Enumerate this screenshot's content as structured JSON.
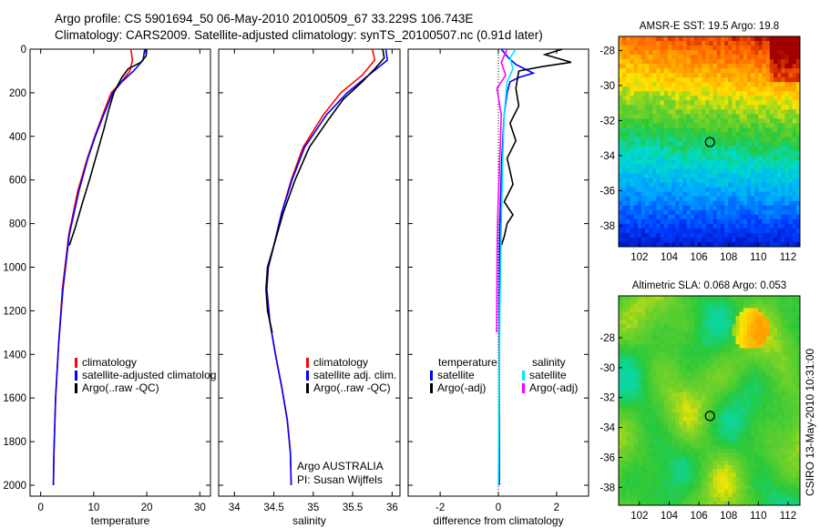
{
  "header": {
    "line1": "Argo profile: CS 5901694_50 06-May-2010 20100509_67 33.229S 106.743E",
    "line2": "Climatology: CARS2009. Satellite-adjusted climatology: synTS_20100507.nc (0.91d later)"
  },
  "side_label": "CSIRO 13-May-2010 10:31:00",
  "colors": {
    "climatology": "#ff0000",
    "satellite": "#0000ff",
    "argo": "#000000",
    "sat_salinity": "#00e5ff",
    "argo_salinity": "#ff00ff"
  },
  "chart_data": [
    {
      "name": "temperature",
      "type": "line",
      "xlabel": "temperature",
      "xlim": [
        -2,
        32
      ],
      "ylim": [
        0,
        2050
      ],
      "xticks": [
        "0",
        "10",
        "20",
        "30"
      ],
      "xtick_values": [
        0,
        10,
        20,
        30
      ],
      "yticks": [
        "0",
        "200",
        "400",
        "600",
        "800",
        "1000",
        "1200",
        "1400",
        "1600",
        "1800",
        "2000"
      ],
      "ytick_values": [
        0,
        200,
        400,
        600,
        800,
        1000,
        1200,
        1400,
        1600,
        1800,
        2000
      ],
      "legend": [
        "climatology",
        "satellite-adjusted climatolog",
        "Argo(..raw -QC)"
      ],
      "series": [
        {
          "name": "climatology",
          "color": "#ff0000",
          "x": [
            17,
            17.3,
            16.8,
            15.2,
            13.3,
            11.7,
            10.2,
            8.8,
            7.0,
            5.3,
            4.1,
            3.4,
            2.8,
            2.5,
            2.4
          ],
          "y": [
            0,
            50,
            100,
            150,
            200,
            300,
            400,
            500,
            650,
            850,
            1100,
            1350,
            1600,
            1850,
            2000
          ]
        },
        {
          "name": "satellite-adjusted climatology",
          "color": "#0000ff",
          "x": [
            19.6,
            19.3,
            17.5,
            15.3,
            13.6,
            11.9,
            10.3,
            8.9,
            7.2,
            5.4,
            4.2,
            3.4,
            2.8,
            2.5,
            2.4
          ],
          "y": [
            0,
            50,
            100,
            150,
            200,
            300,
            400,
            500,
            650,
            850,
            1100,
            1350,
            1600,
            1850,
            2000
          ]
        },
        {
          "name": "Argo",
          "color": "#000000",
          "x": [
            19.8,
            19.9,
            18.9,
            16.5,
            15.3,
            13.8,
            12.8,
            12.0,
            10.7,
            9.2,
            7.8,
            6.5,
            5.4
          ],
          "y": [
            0,
            30,
            60,
            90,
            130,
            200,
            280,
            360,
            470,
            600,
            710,
            820,
            900
          ]
        }
      ]
    },
    {
      "name": "salinity",
      "type": "line",
      "xlabel": "salinity",
      "xlim": [
        33.8,
        36.1
      ],
      "ylim": [
        0,
        2050
      ],
      "xticks": [
        "34",
        "34.5",
        "35",
        "35.5",
        "36"
      ],
      "xtick_values": [
        34,
        34.5,
        35,
        35.5,
        36
      ],
      "legend": [
        "climatology",
        "satellite adj. clim.",
        "Argo(..raw -QC)"
      ],
      "annotation": [
        "Argo AUSTRALIA",
        "PI: Susan Wijffels"
      ],
      "series": [
        {
          "name": "climatology",
          "color": "#ff0000",
          "x": [
            35.75,
            35.78,
            35.62,
            35.35,
            35.13,
            34.87,
            34.72,
            34.6,
            34.5,
            34.43,
            34.41,
            34.45,
            34.52,
            34.6,
            34.67,
            34.71,
            34.72
          ],
          "y": [
            0,
            50,
            120,
            200,
            300,
            450,
            600,
            750,
            900,
            1000,
            1100,
            1250,
            1400,
            1550,
            1700,
            1850,
            2000
          ]
        },
        {
          "name": "satellite adj. clim.",
          "color": "#0000ff",
          "x": [
            35.92,
            35.94,
            35.7,
            35.43,
            35.17,
            34.89,
            34.73,
            34.6,
            34.5,
            34.43,
            34.41,
            34.45,
            34.52,
            34.6,
            34.67,
            34.71,
            34.72
          ],
          "y": [
            0,
            50,
            120,
            200,
            300,
            450,
            600,
            750,
            900,
            1000,
            1100,
            1250,
            1400,
            1550,
            1700,
            1850,
            2000
          ]
        },
        {
          "name": "Argo",
          "color": "#000000",
          "x": [
            35.88,
            35.9,
            35.78,
            35.62,
            35.38,
            35.2,
            34.95,
            34.77,
            34.62,
            34.5,
            34.42,
            34.4,
            34.42,
            34.48
          ],
          "y": [
            0,
            40,
            90,
            150,
            230,
            320,
            450,
            600,
            750,
            900,
            1000,
            1100,
            1200,
            1300
          ]
        }
      ]
    },
    {
      "name": "difference",
      "type": "line",
      "xlabel": "difference from climatology",
      "xlim": [
        -3.1,
        3.1
      ],
      "ylim": [
        0,
        2050
      ],
      "xticks": [
        "-2",
        "0",
        "2"
      ],
      "xtick_values": [
        -2,
        0,
        2
      ],
      "legend_headers": [
        "temperature",
        "salinity"
      ],
      "legend": [
        "satellite",
        "Argo(-adj)",
        "satellite",
        "Argo(-adj)"
      ],
      "series": [
        {
          "name": "temperature satellite",
          "color": "#0000ff",
          "x": [
            0.1,
            0.35,
            0.6,
            0.9,
            1.2,
            0.7,
            0.4,
            0.3,
            0.2,
            0.12,
            0.05,
            0.03,
            0.03
          ],
          "y": [
            0,
            40,
            70,
            90,
            110,
            130,
            150,
            200,
            300,
            500,
            800,
            1200,
            2000
          ]
        },
        {
          "name": "temperature Argo(-adj)",
          "color": "#000000",
          "x": [
            2.2,
            1.6,
            2.5,
            1.5,
            0.7,
            0.6,
            0.7,
            0.4,
            0.6,
            0.3,
            0.5,
            0.2,
            0.5,
            0.3,
            0.2,
            0.1
          ],
          "y": [
            0,
            25,
            60,
            80,
            100,
            180,
            260,
            340,
            420,
            500,
            620,
            700,
            760,
            800,
            860,
            900
          ]
        },
        {
          "name": "salinity satellite",
          "color": "#00e5ff",
          "x": [
            0.6,
            0.4,
            0.5,
            0.3,
            0.2,
            0.15,
            0.1,
            0.05,
            0.02,
            0.0
          ],
          "y": [
            0,
            40,
            90,
            150,
            300,
            500,
            800,
            1200,
            1600,
            2000
          ]
        },
        {
          "name": "salinity Argo(-adj)",
          "color": "#ff00ff",
          "x": [
            0.3,
            0.1,
            0.25,
            -0.05,
            0.1,
            0.05,
            -0.02,
            -0.04,
            -0.05,
            -0.06
          ],
          "y": [
            0,
            60,
            120,
            180,
            300,
            500,
            750,
            900,
            1100,
            1300
          ]
        }
      ]
    },
    {
      "name": "sst_map",
      "type": "heatmap",
      "title": "AMSR-E SST: 19.5 Argo: 19.8",
      "xlim": [
        100.6,
        112.8
      ],
      "ylim": [
        -39.2,
        -27.2
      ],
      "xticks": [
        "102",
        "104",
        "106",
        "108",
        "110",
        "112"
      ],
      "xtick_values": [
        102,
        104,
        106,
        108,
        110,
        112
      ],
      "yticks": [
        "-28",
        "-30",
        "-32",
        "-34",
        "-36",
        "-38"
      ],
      "ytick_values": [
        -28,
        -30,
        -32,
        -34,
        -36,
        -38
      ],
      "marker": {
        "lon": 106.743,
        "lat": -33.229
      }
    },
    {
      "name": "sla_map",
      "type": "heatmap",
      "title": "Altimetric SLA: 0.068 Argo: 0.053",
      "xlim": [
        100.6,
        112.8
      ],
      "ylim": [
        -39.2,
        -25.2
      ],
      "xticks": [
        "102",
        "104",
        "106",
        "108",
        "110",
        "112"
      ],
      "xtick_values": [
        102,
        104,
        106,
        108,
        110,
        112
      ],
      "yticks": [
        "-28",
        "-30",
        "-32",
        "-34",
        "-36",
        "-38"
      ],
      "ytick_values": [
        -28,
        -30,
        -32,
        -34,
        -36,
        -38
      ],
      "marker": {
        "lon": 106.743,
        "lat": -33.229
      }
    }
  ]
}
